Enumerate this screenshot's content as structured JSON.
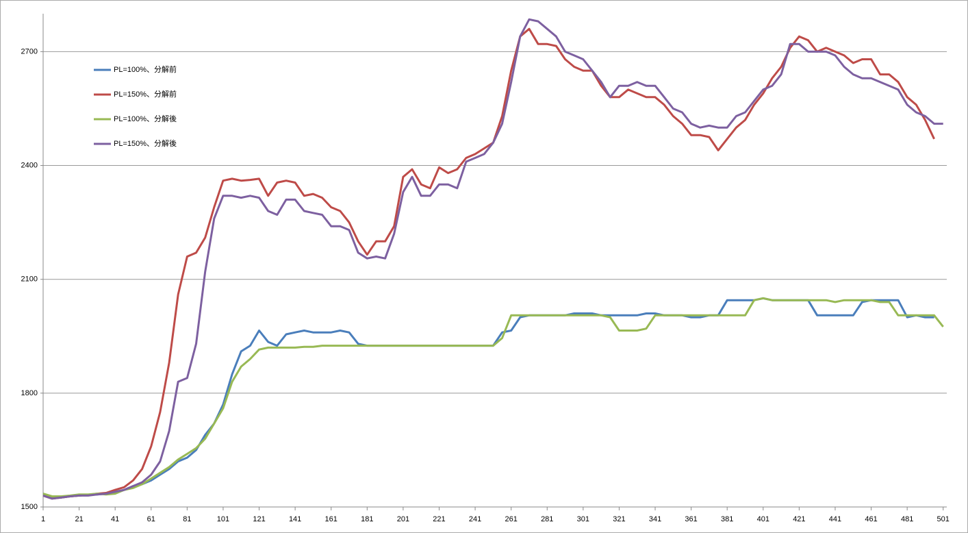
{
  "chart_data": {
    "type": "line",
    "x": [
      1,
      6,
      11,
      16,
      21,
      26,
      31,
      36,
      41,
      46,
      51,
      56,
      61,
      66,
      71,
      76,
      81,
      86,
      91,
      96,
      101,
      106,
      111,
      116,
      121,
      126,
      131,
      136,
      141,
      146,
      151,
      156,
      161,
      166,
      171,
      176,
      181,
      186,
      191,
      196,
      201,
      206,
      211,
      216,
      221,
      226,
      231,
      236,
      241,
      246,
      251,
      256,
      261,
      266,
      271,
      276,
      281,
      286,
      291,
      296,
      301,
      306,
      311,
      316,
      321,
      326,
      331,
      336,
      341,
      346,
      351,
      356,
      361,
      366,
      371,
      376,
      381,
      386,
      391,
      396,
      401,
      406,
      411,
      416,
      421,
      426,
      431,
      436,
      441,
      446,
      451,
      456,
      461,
      466,
      471,
      476,
      481,
      486,
      491,
      496,
      501
    ],
    "series": [
      {
        "name": "PL=100%、分解前",
        "color": "#4a7ebb",
        "values": [
          1535,
          1525,
          1525,
          1528,
          1530,
          1532,
          1533,
          1535,
          1538,
          1545,
          1555,
          1560,
          1570,
          1585,
          1600,
          1620,
          1630,
          1650,
          1690,
          1720,
          1770,
          1850,
          1910,
          1925,
          1965,
          1935,
          1925,
          1955,
          1960,
          1965,
          1960,
          1960,
          1960,
          1965,
          1960,
          1930,
          1925,
          1925,
          1925,
          1925,
          1925,
          1925,
          1925,
          1925,
          1925,
          1925,
          1925,
          1925,
          1925,
          1925,
          1925,
          1960,
          1965,
          2000,
          2005,
          2005,
          2005,
          2005,
          2005,
          2010,
          2010,
          2010,
          2005,
          2005,
          2005,
          2005,
          2005,
          2010,
          2010,
          2005,
          2005,
          2005,
          2000,
          2000,
          2005,
          2005,
          2045,
          2045,
          2045,
          2045,
          2050,
          2045,
          2045,
          2045,
          2045,
          2045,
          2005,
          2005,
          2005,
          2005,
          2005,
          2040,
          2045,
          2045,
          2045,
          2045,
          2000,
          2005,
          2000,
          2000,
          null
        ]
      },
      {
        "name": "PL=150%、分解前",
        "color": "#be4b48",
        "values": [
          1530,
          1522,
          1525,
          1528,
          1530,
          1532,
          1535,
          1537,
          1545,
          1552,
          1570,
          1600,
          1660,
          1750,
          1880,
          2060,
          2160,
          2170,
          2210,
          2290,
          2360,
          2365,
          2360,
          2362,
          2365,
          2320,
          2355,
          2360,
          2355,
          2320,
          2325,
          2315,
          2290,
          2280,
          2250,
          2200,
          2165,
          2200,
          2200,
          2240,
          2370,
          2390,
          2350,
          2340,
          2395,
          2380,
          2390,
          2420,
          2430,
          2445,
          2460,
          2530,
          2650,
          2740,
          2760,
          2720,
          2720,
          2715,
          2680,
          2660,
          2650,
          2650,
          2610,
          2580,
          2580,
          2600,
          2590,
          2580,
          2580,
          2560,
          2530,
          2510,
          2480,
          2480,
          2475,
          2440,
          2470,
          2500,
          2520,
          2560,
          2590,
          2630,
          2660,
          2710,
          2740,
          2730,
          2700,
          2710,
          2700,
          2690,
          2670,
          2680,
          2680,
          2640,
          2640,
          2620,
          2580,
          2560,
          2520,
          2470,
          null
        ]
      },
      {
        "name": "PL=100%、分解後",
        "color": "#98b954",
        "values": [
          1535,
          1528,
          1528,
          1530,
          1533,
          1533,
          1535,
          1533,
          1535,
          1545,
          1550,
          1560,
          1575,
          1590,
          1605,
          1625,
          1640,
          1655,
          1680,
          1720,
          1760,
          1830,
          1870,
          1890,
          1915,
          1920,
          1920,
          1920,
          1920,
          1922,
          1922,
          1925,
          1925,
          1925,
          1925,
          1925,
          1925,
          1925,
          1925,
          1925,
          1925,
          1925,
          1925,
          1925,
          1925,
          1925,
          1925,
          1925,
          1925,
          1925,
          1925,
          1945,
          2005,
          2005,
          2005,
          2005,
          2005,
          2005,
          2005,
          2005,
          2005,
          2005,
          2005,
          2000,
          1965,
          1965,
          1965,
          1970,
          2005,
          2005,
          2005,
          2005,
          2005,
          2005,
          2005,
          2005,
          2005,
          2005,
          2005,
          2045,
          2050,
          2045,
          2045,
          2045,
          2045,
          2045,
          2045,
          2045,
          2040,
          2045,
          2045,
          2045,
          2045,
          2040,
          2040,
          2005,
          2005,
          2005,
          2005,
          2005,
          1975
        ]
      },
      {
        "name": "PL=150%、分解後",
        "color": "#7d60a0",
        "values": [
          1530,
          1522,
          1525,
          1528,
          1530,
          1530,
          1533,
          1535,
          1540,
          1545,
          1555,
          1565,
          1585,
          1620,
          1700,
          1830,
          1840,
          1930,
          2120,
          2260,
          2320,
          2320,
          2315,
          2320,
          2315,
          2280,
          2270,
          2310,
          2310,
          2280,
          2275,
          2270,
          2240,
          2240,
          2230,
          2170,
          2155,
          2160,
          2155,
          2220,
          2330,
          2370,
          2320,
          2320,
          2350,
          2350,
          2340,
          2410,
          2420,
          2430,
          2460,
          2510,
          2620,
          2740,
          2785,
          2780,
          2760,
          2740,
          2700,
          2690,
          2680,
          2650,
          2620,
          2580,
          2610,
          2610,
          2620,
          2610,
          2610,
          2580,
          2550,
          2540,
          2510,
          2500,
          2505,
          2500,
          2500,
          2530,
          2540,
          2570,
          2600,
          2610,
          2640,
          2720,
          2720,
          2700,
          2700,
          2700,
          2690,
          2660,
          2640,
          2630,
          2630,
          2620,
          2610,
          2600,
          2560,
          2540,
          2530,
          2510,
          2510
        ]
      }
    ],
    "xlim": [
      1,
      503
    ],
    "xticks": [
      1,
      21,
      41,
      61,
      81,
      101,
      121,
      141,
      161,
      181,
      201,
      221,
      241,
      261,
      281,
      301,
      321,
      341,
      361,
      381,
      401,
      421,
      441,
      461,
      481,
      501
    ],
    "ylim": [
      1500,
      2800
    ],
    "yticks": [
      1500,
      1800,
      2100,
      2400,
      2700
    ],
    "grid": true,
    "legend": "upper left"
  }
}
